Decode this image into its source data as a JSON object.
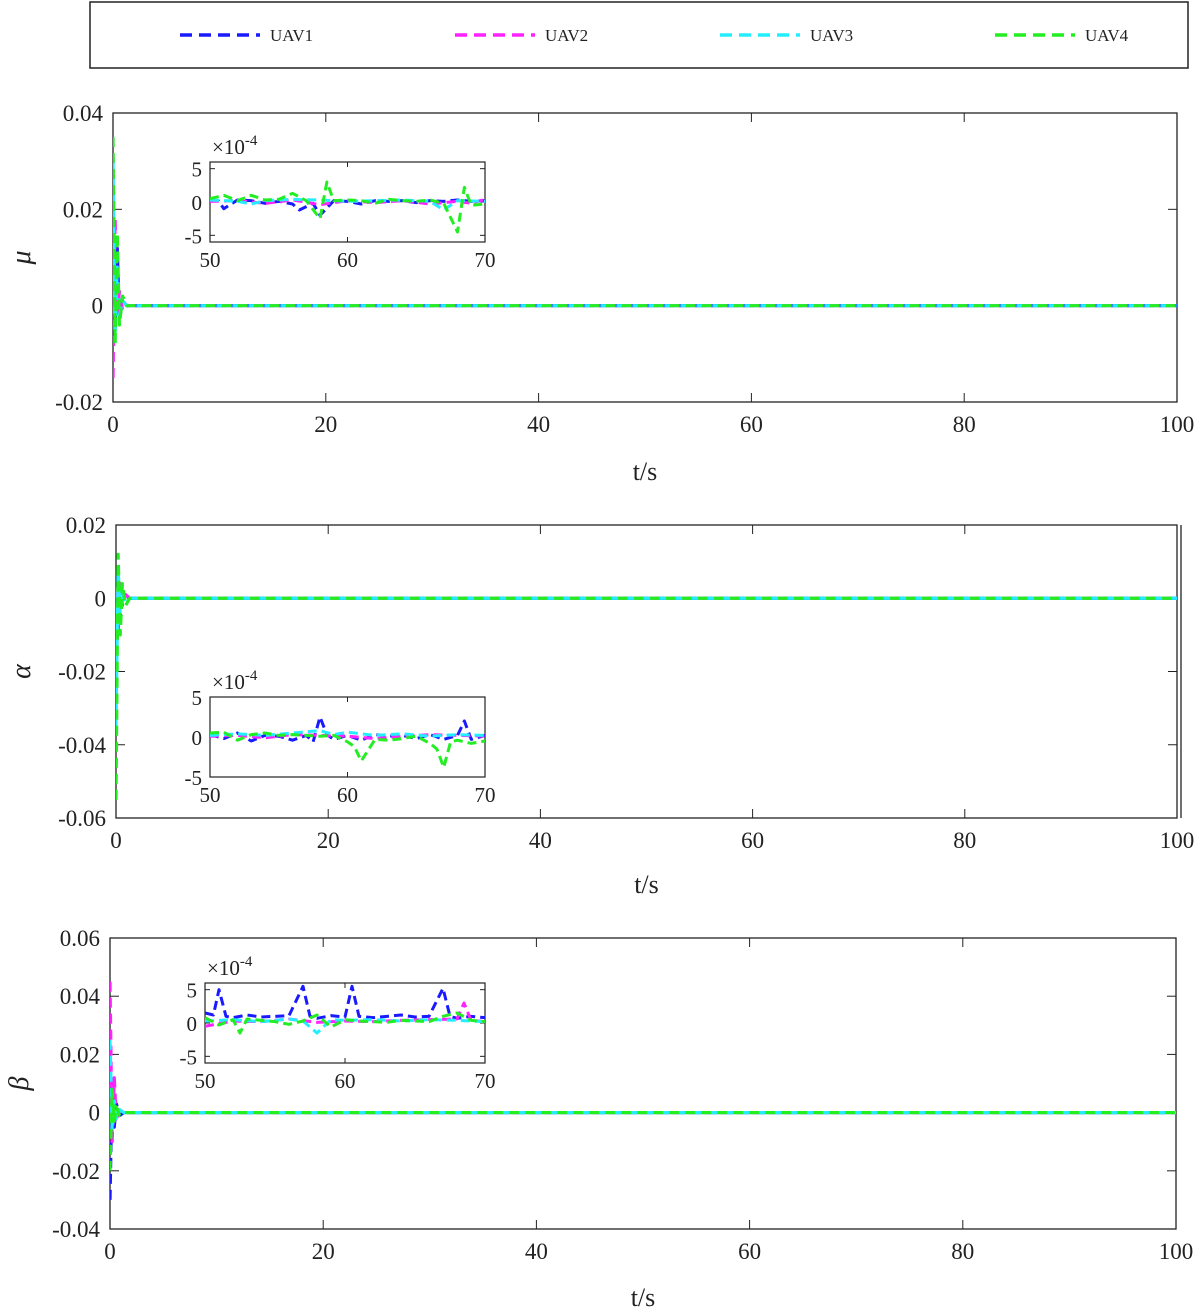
{
  "legend": {
    "entries": [
      {
        "name": "UAV1",
        "color": "#1a1aff"
      },
      {
        "name": "UAV2",
        "color": "#ff22ff"
      },
      {
        "name": "UAV3",
        "color": "#22eeff"
      },
      {
        "name": "UAV4",
        "color": "#22ee22"
      }
    ],
    "placement": "top",
    "line_style": "dashed"
  },
  "chart_data": [
    {
      "type": "line",
      "id": "mu",
      "ylabel": "μ",
      "xlabel": "t/s",
      "xlim": [
        0,
        100
      ],
      "ylim": [
        -0.02,
        0.04
      ],
      "xticks": [
        "0",
        "20",
        "40",
        "60",
        "80",
        "100"
      ],
      "yticks": [
        "-0.02",
        "0",
        "0.02",
        "0.04"
      ],
      "series": [
        {
          "name": "UAV1",
          "x": [
            0,
            0.2,
            0.4,
            0.6,
            0.9,
            1.3,
            2,
            100
          ],
          "y": [
            0.021,
            -0.004,
            0.012,
            -0.003,
            0.001,
            0,
            0,
            0
          ]
        },
        {
          "name": "UAV2",
          "x": [
            0,
            0.2,
            0.4,
            0.6,
            0.9,
            1.3,
            2,
            100
          ],
          "y": [
            -0.015,
            0.018,
            -0.002,
            0.003,
            -0.001,
            0,
            0,
            0
          ]
        },
        {
          "name": "UAV3",
          "x": [
            0,
            0.2,
            0.4,
            0.6,
            0.9,
            1.3,
            2,
            100
          ],
          "y": [
            0.03,
            -0.006,
            0.008,
            -0.002,
            0.001,
            0,
            0,
            0
          ]
        },
        {
          "name": "UAV4",
          "x": [
            0,
            0.2,
            0.4,
            0.6,
            0.9,
            1.3,
            2,
            100
          ],
          "y": [
            0.035,
            -0.008,
            0.015,
            -0.004,
            0.002,
            0,
            0,
            0
          ]
        }
      ],
      "inset": {
        "xlim": [
          50,
          70
        ],
        "ylim": [
          -6,
          6
        ],
        "xticks": [
          "50",
          "60",
          "70"
        ],
        "yticks": [
          "5",
          "0",
          "-5"
        ],
        "multiplier_base": "×10",
        "multiplier_exp": "-4",
        "series": [
          {
            "name": "UAV1",
            "x": [
              50,
              50.6,
              51,
              52,
              53,
              54,
              55,
              56,
              56.5,
              57.5,
              58,
              59,
              60,
              61,
              62,
              63,
              64,
              65,
              66,
              67,
              68,
              69,
              70
            ],
            "y": [
              0.2,
              0.2,
              -1.0,
              0.3,
              0.2,
              -0.2,
              0.1,
              -0.3,
              -1.2,
              -0.2,
              -2.0,
              0.2,
              0.1,
              -0.3,
              0.2,
              0.1,
              0.2,
              -0.1,
              0.2,
              0.1,
              0.3,
              0.1,
              0.2
            ]
          },
          {
            "name": "UAV2",
            "x": [
              50,
              52,
              54,
              56,
              58,
              60,
              62,
              64,
              66,
              68,
              69,
              70
            ],
            "y": [
              0.1,
              0.2,
              -0.2,
              0.3,
              -0.4,
              0.2,
              -0.1,
              0.2,
              -0.3,
              0.1,
              -0.2,
              0.4
            ]
          },
          {
            "name": "UAV3",
            "x": [
              50,
              52,
              53,
              54,
              56,
              58,
              60,
              62,
              64,
              66,
              67,
              68,
              70
            ],
            "y": [
              0.3,
              0.1,
              -0.3,
              0.2,
              0.4,
              0.3,
              0.1,
              0.2,
              0.3,
              0.1,
              -1.2,
              0.2,
              0.1
            ]
          },
          {
            "name": "UAV4",
            "x": [
              50,
              51,
              52,
              53,
              54,
              55,
              56,
              57,
              58,
              58.5,
              59,
              60,
              61,
              62,
              63,
              64,
              65,
              66,
              67,
              68,
              68.5,
              69,
              70
            ],
            "y": [
              0.5,
              1.0,
              0.2,
              1.0,
              0.3,
              0.4,
              1.3,
              0.2,
              -2.5,
              3.0,
              0.2,
              0.3,
              0.2,
              -0.2,
              0.4,
              0.2,
              0.1,
              0.3,
              -0.2,
              -4.5,
              2.2,
              -0.5,
              -0.3
            ]
          }
        ]
      }
    },
    {
      "type": "line",
      "id": "alpha",
      "ylabel": "α",
      "xlabel": "t/s",
      "xlim": [
        0,
        100
      ],
      "ylim": [
        -0.06,
        0.02
      ],
      "xticks": [
        "0",
        "20",
        "40",
        "60",
        "80",
        "100"
      ],
      "yticks": [
        "-0.06",
        "-0.04",
        "-0.02",
        "0",
        "0.02"
      ],
      "series": [
        {
          "name": "UAV1",
          "x": [
            0,
            0.2,
            0.4,
            0.6,
            0.9,
            1.3,
            2,
            100
          ],
          "y": [
            -0.02,
            0.005,
            -0.006,
            0.002,
            -0.001,
            0,
            0,
            0
          ]
        },
        {
          "name": "UAV2",
          "x": [
            0,
            0.2,
            0.4,
            0.6,
            0.9,
            1.3,
            2,
            100
          ],
          "y": [
            0.003,
            -0.01,
            0.004,
            -0.002,
            0.001,
            0,
            0,
            0
          ]
        },
        {
          "name": "UAV3",
          "x": [
            0,
            0.2,
            0.4,
            0.6,
            0.9,
            1.3,
            2,
            100
          ],
          "y": [
            -0.035,
            0.008,
            -0.004,
            0.002,
            -0.001,
            0,
            0,
            0
          ]
        },
        {
          "name": "UAV4",
          "x": [
            0,
            0.2,
            0.4,
            0.6,
            0.9,
            1.3,
            2,
            100
          ],
          "y": [
            -0.055,
            0.012,
            -0.01,
            0.004,
            -0.002,
            0,
            0,
            0
          ]
        }
      ],
      "inset": {
        "xlim": [
          50,
          70
        ],
        "ylim": [
          -5,
          5
        ],
        "xticks": [
          "50",
          "60",
          "70"
        ],
        "yticks": [
          "5",
          "0",
          "-5"
        ],
        "multiplier_base": "×10",
        "multiplier_exp": "-4",
        "series": [
          {
            "name": "UAV1",
            "x": [
              50,
              51,
              52,
              53,
              54,
              55,
              56,
              57,
              57.5,
              58,
              58.5,
              59,
              60,
              61,
              62,
              63,
              64,
              65,
              66,
              67,
              68,
              68.5,
              69,
              70
            ],
            "y": [
              0.3,
              -0.2,
              0.5,
              -0.5,
              0.2,
              0.1,
              -0.4,
              0.2,
              -0.6,
              2.5,
              0.3,
              -0.3,
              0.2,
              -0.4,
              0.3,
              0.1,
              0.2,
              -0.2,
              0.3,
              -0.3,
              0.2,
              2.0,
              -0.3,
              0.2
            ]
          },
          {
            "name": "UAV2",
            "x": [
              50,
              52,
              54,
              56,
              58,
              60,
              62,
              64,
              66,
              68,
              70
            ],
            "y": [
              0.1,
              0.2,
              -0.1,
              0.3,
              0.2,
              0.1,
              -0.2,
              0.1,
              0.3,
              0.2,
              0.1
            ]
          },
          {
            "name": "UAV3",
            "x": [
              50,
              52,
              54,
              56,
              58,
              59,
              60,
              62,
              64,
              66,
              68,
              70
            ],
            "y": [
              0.2,
              0.4,
              0.2,
              0.5,
              0.8,
              0.3,
              0.6,
              0.2,
              0.4,
              0.1,
              0.3,
              0.2
            ]
          },
          {
            "name": "UAV4",
            "x": [
              50,
              51,
              52,
              53,
              54,
              55,
              56,
              57,
              58,
              59,
              60,
              60.5,
              61,
              62,
              63,
              64,
              65,
              66,
              66.5,
              67,
              67.5,
              68,
              69,
              70
            ],
            "y": [
              0.5,
              0.6,
              -0.4,
              0.3,
              0.5,
              0.2,
              0.3,
              0.2,
              0.1,
              0.2,
              -0.6,
              -1.2,
              -3.0,
              -0.3,
              -0.4,
              -0.2,
              0.1,
              -0.8,
              -1.5,
              -3.8,
              -0.6,
              -0.4,
              -0.8,
              -0.5
            ]
          }
        ]
      }
    },
    {
      "type": "line",
      "id": "beta",
      "ylabel": "β",
      "xlabel": "t/s",
      "xlim": [
        0,
        100
      ],
      "ylim": [
        -0.04,
        0.06
      ],
      "xticks": [
        "0",
        "20",
        "40",
        "60",
        "80",
        "100"
      ],
      "yticks": [
        "-0.04",
        "-0.02",
        "0",
        "0.02",
        "0.04",
        "0.06"
      ],
      "series": [
        {
          "name": "UAV1",
          "x": [
            0,
            0.2,
            0.4,
            0.6,
            0.9,
            1.3,
            2,
            100
          ],
          "y": [
            -0.03,
            0.01,
            -0.005,
            0.003,
            -0.001,
            0,
            0,
            0
          ]
        },
        {
          "name": "UAV2",
          "x": [
            0,
            0.2,
            0.4,
            0.6,
            0.9,
            1.3,
            2,
            100
          ],
          "y": [
            0.045,
            -0.01,
            0.012,
            -0.003,
            0.001,
            0,
            0,
            0
          ]
        },
        {
          "name": "UAV3",
          "x": [
            0,
            0.2,
            0.4,
            0.6,
            0.9,
            1.3,
            2,
            100
          ],
          "y": [
            0.025,
            -0.006,
            0.004,
            -0.002,
            0.001,
            0,
            0,
            0
          ]
        },
        {
          "name": "UAV4",
          "x": [
            0,
            0.2,
            0.4,
            0.6,
            0.9,
            1.3,
            2,
            100
          ],
          "y": [
            -0.02,
            0.008,
            -0.003,
            0.002,
            -0.001,
            0,
            0,
            0
          ]
        }
      ],
      "inset": {
        "xlim": [
          50,
          70
        ],
        "ylim": [
          -6,
          6
        ],
        "xticks": [
          "50",
          "60",
          "70"
        ],
        "yticks": [
          "5",
          "0",
          "-5"
        ],
        "multiplier_base": "×10",
        "multiplier_exp": "-4",
        "series": [
          {
            "name": "UAV1",
            "x": [
              50,
              50.6,
              51,
              51.5,
              52,
              53,
              54,
              55,
              56,
              57,
              57.5,
              58,
              59,
              60,
              60.5,
              61,
              62,
              63,
              64,
              65,
              66,
              67,
              67.5,
              68,
              69,
              70
            ],
            "y": [
              1.5,
              1.2,
              5.0,
              1.0,
              0.8,
              1.2,
              0.9,
              1.0,
              1.1,
              5.5,
              1.0,
              0.7,
              1.1,
              0.9,
              5.5,
              1.0,
              0.8,
              1.0,
              1.2,
              0.9,
              1.0,
              5.2,
              1.0,
              0.7,
              1.0,
              0.8
            ]
          },
          {
            "name": "UAV2",
            "x": [
              50,
              52,
              54,
              56,
              58,
              60,
              62,
              64,
              66,
              68,
              68.5,
              69,
              70
            ],
            "y": [
              -0.5,
              0.3,
              0.2,
              0.6,
              0.1,
              0.3,
              0.2,
              0.4,
              0.5,
              0.6,
              3.0,
              0.4,
              0.2
            ]
          },
          {
            "name": "UAV3",
            "x": [
              50,
              52,
              54,
              56,
              57,
              58,
              59,
              60,
              62,
              64,
              66,
              68,
              70
            ],
            "y": [
              0.3,
              0.5,
              0.2,
              0.6,
              0.3,
              -1.5,
              0.5,
              0.4,
              0.5,
              0.3,
              0.5,
              0.4,
              0.2
            ]
          },
          {
            "name": "UAV4",
            "x": [
              50,
              51,
              52,
              52.5,
              53,
              54,
              55,
              56,
              57,
              58,
              59,
              60,
              61,
              62,
              63,
              64,
              65,
              66,
              67,
              68,
              69,
              70
            ],
            "y": [
              0.8,
              -0.3,
              0.5,
              -1.5,
              0.6,
              0.4,
              0.2,
              -0.2,
              0.3,
              1.2,
              -0.6,
              0.5,
              0.3,
              0.2,
              0.1,
              0.4,
              0.3,
              0.2,
              1.0,
              1.5,
              0.4,
              0.2
            ]
          }
        ]
      }
    }
  ]
}
